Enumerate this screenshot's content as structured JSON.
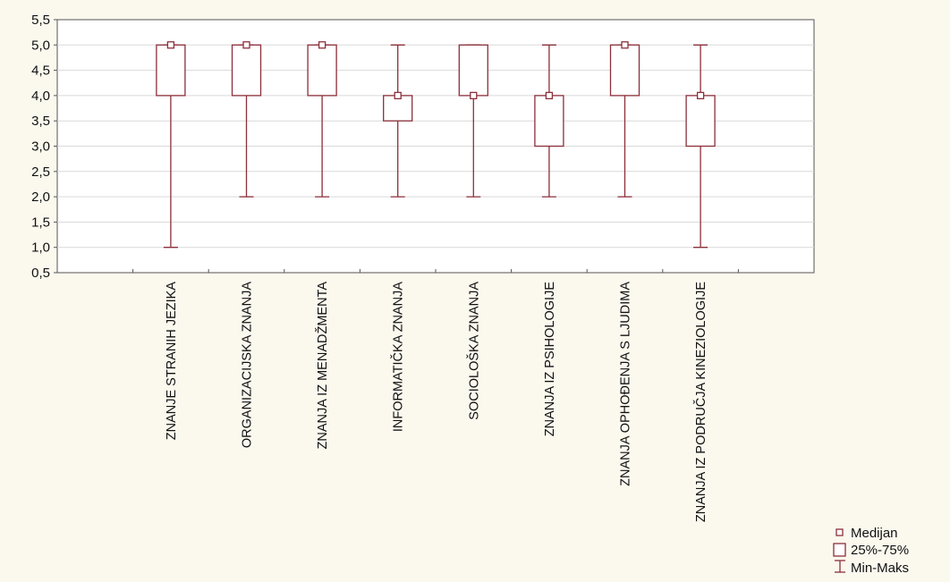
{
  "chart_data": {
    "type": "boxplot",
    "yticks": [
      "0,5",
      "1,0",
      "1,5",
      "2,0",
      "2,5",
      "3,0",
      "3,5",
      "4,0",
      "4,5",
      "5,0",
      "5,5"
    ],
    "ylim": [
      0.5,
      5.5
    ],
    "grid": true,
    "legend_position": "bottom-right",
    "categories": [
      "ZNANJE STRANIH JEZIKA",
      "ORGANIZACIJSKA ZNANJA",
      "ZNANJA IZ MENADŽMENTA",
      "INFORMATIČKA ZNANJA",
      "SOCIOLOŠKA ZNANJA",
      "ZNANJA IZ PSIHOLOGIJE",
      "ZNANJA OPHOĐENJA S LJUDIMA",
      "ZNANJA IZ PODRUČJA KINEZIOLOGIJE"
    ],
    "boxes": [
      {
        "median": 5.0,
        "q1": 4.0,
        "q3": 5.0,
        "min": 1.0,
        "max": 5.0
      },
      {
        "median": 5.0,
        "q1": 4.0,
        "q3": 5.0,
        "min": 2.0,
        "max": 5.0
      },
      {
        "median": 5.0,
        "q1": 4.0,
        "q3": 5.0,
        "min": 2.0,
        "max": 5.0
      },
      {
        "median": 4.0,
        "q1": 3.5,
        "q3": 4.0,
        "min": 2.0,
        "max": 5.0
      },
      {
        "median": 4.0,
        "q1": 4.0,
        "q3": 5.0,
        "min": 2.0,
        "max": 5.0
      },
      {
        "median": 4.0,
        "q1": 3.0,
        "q3": 4.0,
        "min": 2.0,
        "max": 5.0
      },
      {
        "median": 5.0,
        "q1": 4.0,
        "q3": 5.0,
        "min": 2.0,
        "max": 5.0
      },
      {
        "median": 4.0,
        "q1": 3.0,
        "q3": 4.0,
        "min": 1.0,
        "max": 5.0
      }
    ],
    "legend": [
      {
        "symbol": "median",
        "label": "Medijan"
      },
      {
        "symbol": "box",
        "label": "25%-75%"
      },
      {
        "symbol": "whisker",
        "label": "Min-Maks"
      }
    ],
    "colors": {
      "background": "#fbf8ee",
      "plot_background": "#ffffff",
      "box_stroke": "#8b2f3a",
      "grid": "#d9d9d9",
      "axis": "#555555"
    }
  }
}
